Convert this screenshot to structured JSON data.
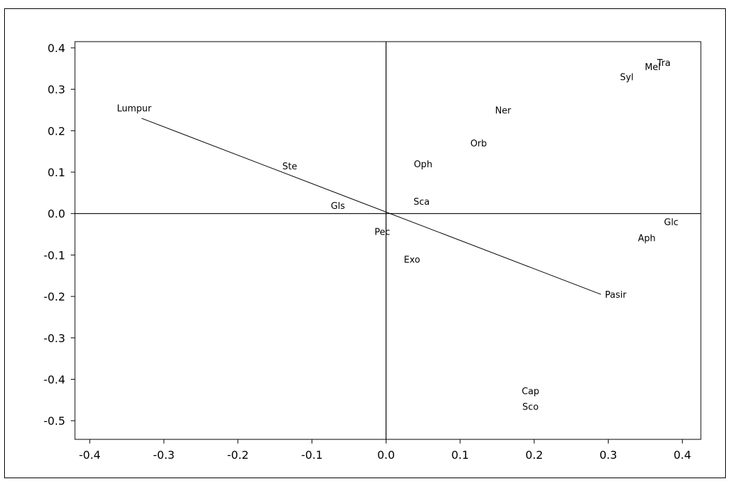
{
  "chart_data": {
    "type": "scatter",
    "title": "",
    "xlabel": "",
    "ylabel": "",
    "xlim": [
      -0.42,
      0.425
    ],
    "ylim": [
      -0.545,
      0.415
    ],
    "x_ticks": [
      -0.4,
      -0.3,
      -0.2,
      -0.1,
      0.0,
      0.1,
      0.2,
      0.3,
      0.4
    ],
    "x_tick_labels": [
      "-0.4",
      "-0.3",
      "-0.2",
      "-0.1",
      "0.0",
      "0.1",
      "0.2",
      "0.3",
      "0.4"
    ],
    "y_ticks": [
      0.4,
      0.3,
      0.2,
      0.1,
      0.0,
      -0.1,
      -0.2,
      -0.3,
      -0.4,
      -0.5
    ],
    "y_tick_labels": [
      "0.4",
      "0.3",
      "0.2",
      "0.1",
      "0.0",
      "-0.1",
      "-0.2",
      "-0.3",
      "-0.4",
      "-0.5"
    ],
    "grid": false,
    "reference_lines": {
      "x": 0.0,
      "y": 0.0
    },
    "vector": {
      "from": {
        "label": "Lumpur",
        "x": -0.33,
        "y": 0.23
      },
      "to": {
        "label": "Pasir",
        "x": 0.29,
        "y": -0.195
      }
    },
    "points": [
      {
        "label": "Lumpur",
        "x": -0.34,
        "y": 0.255
      },
      {
        "label": "Ste",
        "x": -0.13,
        "y": 0.115
      },
      {
        "label": "Gls",
        "x": -0.065,
        "y": 0.02
      },
      {
        "label": "Pec",
        "x": -0.005,
        "y": -0.043
      },
      {
        "label": "Exo",
        "x": 0.035,
        "y": -0.11
      },
      {
        "label": "Sca",
        "x": 0.048,
        "y": 0.03
      },
      {
        "label": "Oph",
        "x": 0.05,
        "y": 0.12
      },
      {
        "label": "Orb",
        "x": 0.125,
        "y": 0.17
      },
      {
        "label": "Ner",
        "x": 0.158,
        "y": 0.25
      },
      {
        "label": "Syl",
        "x": 0.325,
        "y": 0.33
      },
      {
        "label": "Mel",
        "x": 0.36,
        "y": 0.355
      },
      {
        "label": "Tra",
        "x": 0.375,
        "y": 0.365
      },
      {
        "label": "Glc",
        "x": 0.385,
        "y": -0.02
      },
      {
        "label": "Aph",
        "x": 0.352,
        "y": -0.058
      },
      {
        "label": "Pasir",
        "x": 0.31,
        "y": -0.195
      },
      {
        "label": "Cap",
        "x": 0.195,
        "y": -0.428
      },
      {
        "label": "Sco",
        "x": 0.195,
        "y": -0.465
      }
    ]
  }
}
